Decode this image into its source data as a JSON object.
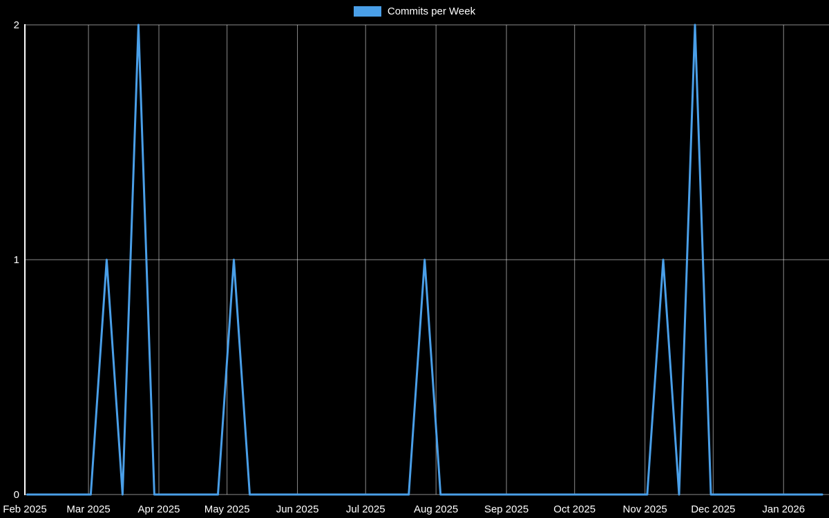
{
  "chart_data": {
    "type": "line",
    "title": "Commits per Week",
    "legend": {
      "position": "top",
      "label": "Commits per Week"
    },
    "background": "#000000",
    "text_color": "#ffffff",
    "grid": true,
    "grid_color": "rgba(255,255,255,0.55)",
    "axis_color": "#ffffff",
    "line_color": "#4A9FE8",
    "line_width": 3,
    "x_type": "time",
    "x_min": "2025-02-01",
    "x_max": "2026-01-21",
    "xlabel": "",
    "ylabel": "",
    "ylim": [
      0,
      2
    ],
    "y_ticks": [
      0,
      1,
      2
    ],
    "x_ticks": [
      {
        "label": "Feb 2025",
        "date": "2025-02-01"
      },
      {
        "label": "Mar 2025",
        "date": "2025-03-01"
      },
      {
        "label": "Apr 2025",
        "date": "2025-04-01"
      },
      {
        "label": "May 2025",
        "date": "2025-05-01"
      },
      {
        "label": "Jun 2025",
        "date": "2025-06-01"
      },
      {
        "label": "Jul 2025",
        "date": "2025-07-01"
      },
      {
        "label": "Aug 2025",
        "date": "2025-08-01"
      },
      {
        "label": "Sep 2025",
        "date": "2025-09-01"
      },
      {
        "label": "Oct 2025",
        "date": "2025-10-01"
      },
      {
        "label": "Nov 2025",
        "date": "2025-11-01"
      },
      {
        "label": "Dec 2025",
        "date": "2025-12-01"
      },
      {
        "label": "Jan 2026",
        "date": "2026-01-01"
      }
    ],
    "series": [
      {
        "name": "Commits per Week",
        "x": [
          "2025-02-02",
          "2025-02-09",
          "2025-02-16",
          "2025-02-23",
          "2025-03-02",
          "2025-03-09",
          "2025-03-16",
          "2025-03-23",
          "2025-03-30",
          "2025-04-06",
          "2025-04-13",
          "2025-04-20",
          "2025-04-27",
          "2025-05-04",
          "2025-05-11",
          "2025-05-18",
          "2025-05-25",
          "2025-06-01",
          "2025-06-08",
          "2025-06-15",
          "2025-06-22",
          "2025-06-29",
          "2025-07-06",
          "2025-07-13",
          "2025-07-20",
          "2025-07-27",
          "2025-08-03",
          "2025-08-10",
          "2025-08-17",
          "2025-08-24",
          "2025-08-31",
          "2025-09-07",
          "2025-09-14",
          "2025-09-21",
          "2025-09-28",
          "2025-10-05",
          "2025-10-12",
          "2025-10-19",
          "2025-10-26",
          "2025-11-02",
          "2025-11-09",
          "2025-11-16",
          "2025-11-23",
          "2025-11-30",
          "2025-12-07",
          "2025-12-14",
          "2025-12-21",
          "2025-12-28",
          "2026-01-04",
          "2026-01-11",
          "2026-01-18"
        ],
        "values": [
          0,
          0,
          0,
          0,
          0,
          1,
          0,
          2,
          0,
          0,
          0,
          0,
          0,
          1,
          0,
          0,
          0,
          0,
          0,
          0,
          0,
          0,
          0,
          0,
          0,
          1,
          0,
          0,
          0,
          0,
          0,
          0,
          0,
          0,
          0,
          0,
          0,
          0,
          0,
          0,
          1,
          0,
          2,
          0,
          0,
          0,
          0,
          0,
          0,
          0,
          0
        ]
      }
    ]
  }
}
